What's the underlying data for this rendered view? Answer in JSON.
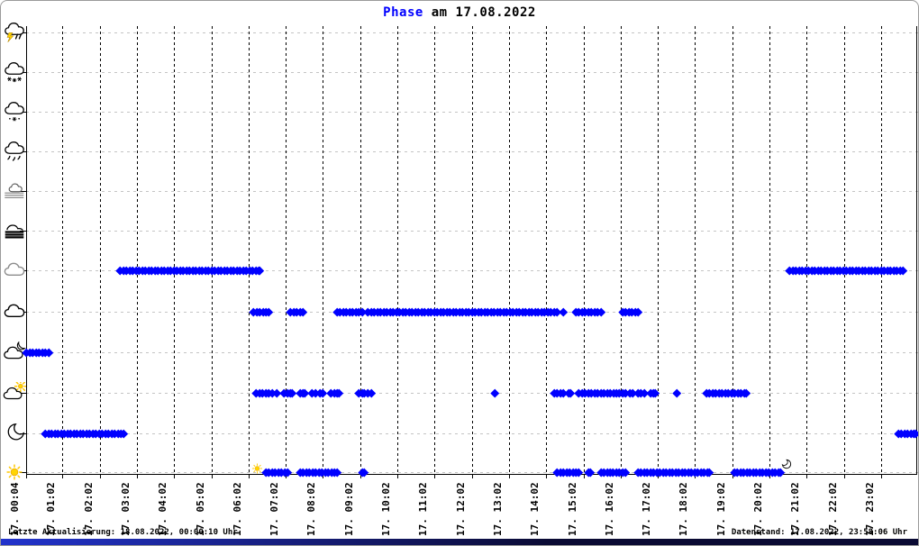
{
  "title": {
    "highlight": "Phase",
    "rest": " am 17.08.2022"
  },
  "footer": {
    "left": "Letzte Aktualisierung: 18.08.2022, 00:00:10 Uhr",
    "right": "Datenstand: 17.08.2022, 23:58:06 Uhr"
  },
  "colors": {
    "point": "#0000ff",
    "title_highlight": "#0000ff",
    "grid_vertical": "#000000",
    "grid_horizontal": "#c4c4c4",
    "sun": "#ffd400"
  },
  "chart_data": {
    "type": "scatter",
    "title": "Phase am 17.08.2022",
    "x_axis": {
      "range": [
        "00:02",
        "24:02"
      ],
      "tick_labels": [
        "17. 00:04",
        "17. 01:02",
        "17. 02:02",
        "17. 03:02",
        "17. 04:02",
        "17. 05:02",
        "17. 06:02",
        "17. 07:02",
        "17. 08:02",
        "17. 09:02",
        "17. 10:02",
        "17. 11:02",
        "17. 12:02",
        "17. 13:02",
        "17. 14:02",
        "17. 15:02",
        "17. 16:02",
        "17. 17:02",
        "17. 18:02",
        "17. 19:02",
        "17. 20:02",
        "17. 21:02",
        "17. 22:02",
        "17. 23:02"
      ]
    },
    "grid": {
      "vertical": "dashed-black-hourly",
      "horizontal": "dashed-gray-per-row"
    },
    "rows": [
      {
        "icon": "thunderstorm-rain-icon",
        "segments": []
      },
      {
        "icon": "snow-icon",
        "segments": []
      },
      {
        "icon": "sleet-icon",
        "segments": []
      },
      {
        "icon": "rain-icon",
        "segments": []
      },
      {
        "icon": "mist-icon",
        "segments": []
      },
      {
        "icon": "fog-icon",
        "segments": []
      },
      {
        "icon": "overcast-icon",
        "segments": [
          [
            "02:35",
            "06:20"
          ],
          [
            "20:35",
            "23:38"
          ]
        ]
      },
      {
        "icon": "cloudy-icon",
        "segments": [
          [
            "06:10",
            "06:35"
          ],
          [
            "07:10",
            "07:30"
          ],
          [
            "08:25",
            "09:05"
          ],
          [
            "09:15",
            "14:20"
          ],
          [
            "14:30",
            "14:30"
          ],
          [
            "14:50",
            "15:10"
          ],
          [
            "15:15",
            "15:30"
          ],
          [
            "16:05",
            "16:30"
          ]
        ]
      },
      {
        "icon": "cloud-moon-icon",
        "segments": [
          [
            "00:04",
            "00:40"
          ]
        ]
      },
      {
        "icon": "cloud-sun-icon",
        "segments": [
          [
            "06:15",
            "06:40"
          ],
          [
            "06:48",
            "06:48"
          ],
          [
            "07:00",
            "07:12"
          ],
          [
            "07:25",
            "07:32"
          ],
          [
            "07:45",
            "07:50"
          ],
          [
            "07:58",
            "08:02"
          ],
          [
            "08:15",
            "08:28"
          ],
          [
            "09:00",
            "09:08"
          ],
          [
            "09:15",
            "09:20"
          ],
          [
            "12:39",
            "12:39"
          ],
          [
            "14:15",
            "14:30"
          ],
          [
            "14:38",
            "14:42"
          ],
          [
            "14:55",
            "15:55"
          ],
          [
            "16:00",
            "16:10"
          ],
          [
            "16:17",
            "16:22"
          ],
          [
            "16:30",
            "16:40"
          ],
          [
            "16:50",
            "16:58"
          ],
          [
            "17:33",
            "17:33"
          ],
          [
            "18:20",
            "19:25"
          ]
        ]
      },
      {
        "icon": "moon-icon",
        "segments": [
          [
            "00:35",
            "02:40"
          ],
          [
            "23:30",
            "23:58"
          ]
        ]
      },
      {
        "icon": "sun-icon",
        "segments": [
          [
            "06:30",
            "07:05"
          ],
          [
            "07:25",
            "08:25"
          ],
          [
            "09:05",
            "09:08"
          ],
          [
            "14:20",
            "14:55"
          ],
          [
            "15:10",
            "15:13"
          ],
          [
            "15:30",
            "15:45"
          ],
          [
            "15:50",
            "16:10"
          ],
          [
            "16:30",
            "18:25"
          ],
          [
            "19:05",
            "20:20"
          ]
        ]
      }
    ],
    "markers": [
      {
        "name": "sunrise-sun-marker",
        "time": "06:16"
      },
      {
        "name": "sunset-moon-marker",
        "time": "20:30"
      }
    ]
  }
}
